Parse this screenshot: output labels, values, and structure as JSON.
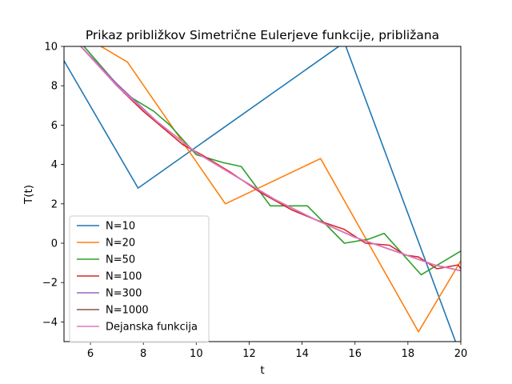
{
  "chart_data": {
    "type": "line",
    "title": "Prikaz približkov Simetrične Eulerjeve funkcije, približana",
    "xlabel": "t",
    "ylabel": "T(t)",
    "xlim": [
      5,
      20
    ],
    "ylim": [
      -5,
      10
    ],
    "xticks": [
      6,
      8,
      10,
      12,
      14,
      16,
      18,
      20
    ],
    "yticks": [
      -4,
      -2,
      0,
      2,
      4,
      6,
      8,
      10
    ],
    "grid": false,
    "legend_position": "lower-left",
    "series": [
      {
        "name": "N=10",
        "color": "#1f77b4",
        "points": [
          [
            4.9,
            9.5
          ],
          [
            7.8,
            2.8
          ],
          [
            15.6,
            10.2
          ],
          [
            19.8,
            -5.0
          ]
        ]
      },
      {
        "name": "N=20",
        "color": "#ff7f0e",
        "points": [
          [
            5.9,
            10.4
          ],
          [
            7.4,
            9.2
          ],
          [
            11.1,
            2.0
          ],
          [
            14.7,
            4.3
          ],
          [
            18.4,
            -4.5
          ],
          [
            20.0,
            -0.9
          ]
        ]
      },
      {
        "name": "N=50",
        "color": "#2ca02c",
        "points": [
          [
            5.5,
            10.4
          ],
          [
            7.3,
            7.6
          ],
          [
            8.4,
            6.7
          ],
          [
            9.0,
            6.0
          ],
          [
            10.0,
            4.5
          ],
          [
            11.0,
            4.1
          ],
          [
            11.7,
            3.9
          ],
          [
            12.8,
            1.9
          ],
          [
            14.2,
            1.9
          ],
          [
            15.6,
            0.0
          ],
          [
            16.5,
            0.2
          ],
          [
            17.1,
            0.5
          ],
          [
            18.5,
            -1.6
          ],
          [
            20.0,
            -0.4
          ]
        ]
      },
      {
        "name": "N=100",
        "color": "#d62728",
        "points": [
          [
            5.5,
            10.2
          ],
          [
            7.0,
            8.0
          ],
          [
            8.0,
            6.7
          ],
          [
            9.5,
            5.0
          ],
          [
            10.2,
            4.5
          ],
          [
            11.3,
            3.6
          ],
          [
            12.4,
            2.6
          ],
          [
            13.6,
            1.7
          ],
          [
            14.5,
            1.2
          ],
          [
            15.6,
            0.7
          ],
          [
            16.4,
            0.0
          ],
          [
            17.3,
            -0.1
          ],
          [
            17.9,
            -0.6
          ],
          [
            18.4,
            -0.7
          ],
          [
            19.1,
            -1.3
          ],
          [
            19.9,
            -1.1
          ],
          [
            20.0,
            -1.3
          ]
        ]
      },
      {
        "name": "N=300",
        "color": "#9467bd",
        "points": [
          [
            5.5,
            10.2
          ],
          [
            7.0,
            8.1
          ],
          [
            8.5,
            6.2
          ],
          [
            10.0,
            4.6
          ],
          [
            11.5,
            3.4
          ],
          [
            13.0,
            2.2
          ],
          [
            14.5,
            1.2
          ],
          [
            16.0,
            0.3
          ],
          [
            17.5,
            -0.4
          ],
          [
            19.0,
            -1.1
          ],
          [
            20.0,
            -1.4
          ]
        ]
      },
      {
        "name": "N=1000",
        "color": "#8c564b",
        "points": [
          [
            5.5,
            10.2
          ],
          [
            7.0,
            8.0
          ],
          [
            8.5,
            6.2
          ],
          [
            10.0,
            4.6
          ],
          [
            11.5,
            3.4
          ],
          [
            13.0,
            2.2
          ],
          [
            14.5,
            1.2
          ],
          [
            16.0,
            0.3
          ],
          [
            17.5,
            -0.4
          ],
          [
            19.0,
            -1.1
          ],
          [
            20.0,
            -1.4
          ]
        ]
      },
      {
        "name": "Dejanska funkcija",
        "color": "#e377c2",
        "points": [
          [
            5.5,
            10.2
          ],
          [
            7.0,
            8.0
          ],
          [
            8.5,
            6.2
          ],
          [
            10.0,
            4.6
          ],
          [
            11.5,
            3.4
          ],
          [
            13.0,
            2.2
          ],
          [
            14.5,
            1.2
          ],
          [
            16.0,
            0.3
          ],
          [
            17.5,
            -0.4
          ],
          [
            19.0,
            -1.1
          ],
          [
            20.0,
            -1.4
          ]
        ]
      }
    ]
  }
}
